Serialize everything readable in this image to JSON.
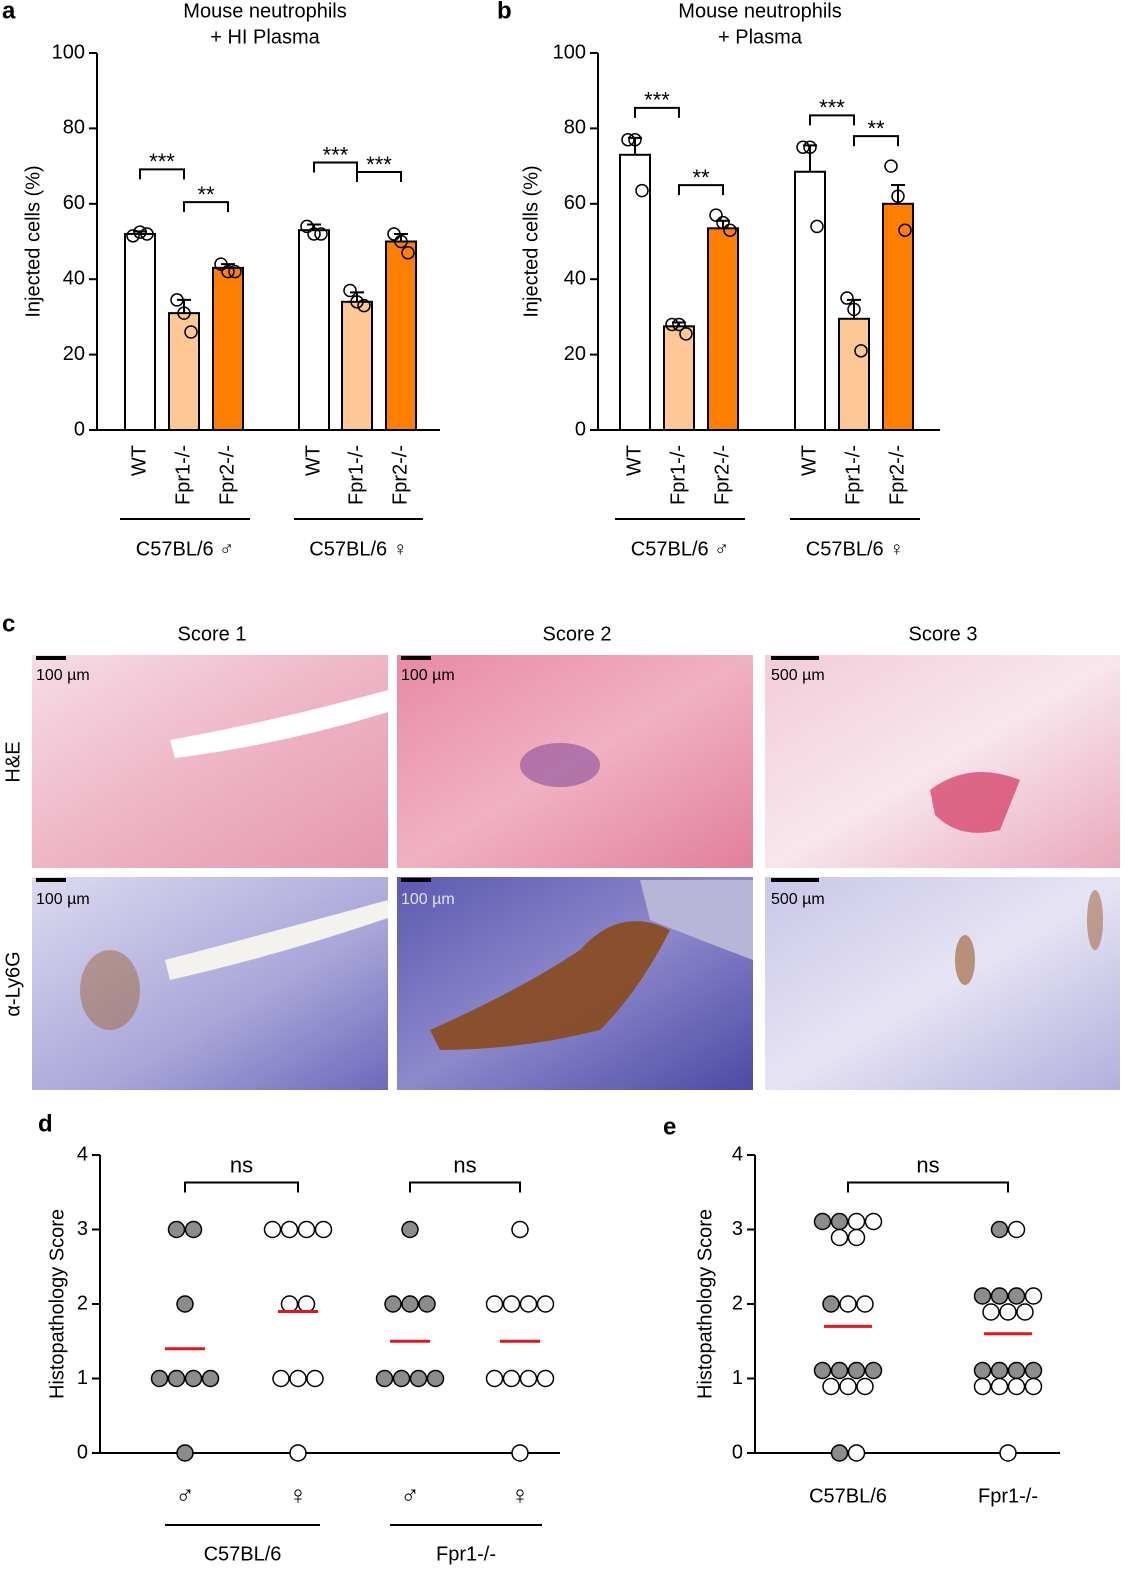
{
  "chart_data": [
    {
      "panel": "a",
      "type": "bar",
      "title": [
        "Mouse neutrophils",
        "+ HI Plasma"
      ],
      "y_label": "Injected cells (%)",
      "ylim": [
        0,
        100
      ],
      "yticks": [
        0,
        20,
        40,
        60,
        80,
        100
      ],
      "categories": [
        "WT",
        "Fpr1-/-",
        "Fpr2-/-",
        "WT",
        "Fpr1-/-",
        "Fpr2-/-"
      ],
      "groups": [
        "C57BL/6 ♂",
        "C57BL/6 ♀"
      ],
      "colors": [
        "#ffffff",
        "#fdc895",
        "#ff7f00",
        "#ffffff",
        "#fdc895",
        "#ff7f00"
      ],
      "values": [
        52,
        31,
        43,
        53,
        34,
        50
      ],
      "errors": [
        0.7,
        3.5,
        1,
        1.5,
        2.5,
        2
      ],
      "points": [
        [
          51.5,
          52.5,
          52
        ],
        [
          34.5,
          31,
          26
        ],
        [
          44,
          42,
          42
        ],
        [
          54,
          52,
          52
        ],
        [
          37,
          34,
          33
        ],
        [
          52,
          50,
          47
        ]
      ],
      "comparisons": [
        {
          "between": [
            0,
            1
          ],
          "label": "***"
        },
        {
          "between": [
            1,
            2
          ],
          "label": "**"
        },
        {
          "between": [
            3,
            4
          ],
          "label": "***"
        },
        {
          "between": [
            4,
            5
          ],
          "label": "***"
        }
      ]
    },
    {
      "panel": "b",
      "type": "bar",
      "title": [
        "Mouse neutrophils",
        "+ Plasma"
      ],
      "y_label": "Injected cells (%)",
      "ylim": [
        0,
        100
      ],
      "yticks": [
        0,
        20,
        40,
        60,
        80,
        100
      ],
      "categories": [
        "WT",
        "Fpr1-/-",
        "Fpr2-/-",
        "WT",
        "Fpr1-/-",
        "Fpr2-/-"
      ],
      "groups": [
        "C57BL/6 ♂",
        "C57BL/6 ♀"
      ],
      "colors": [
        "#ffffff",
        "#fdc895",
        "#ff7f00",
        "#ffffff",
        "#fdc895",
        "#ff7f00"
      ],
      "values": [
        73,
        27.5,
        53.5,
        68.5,
        29.5,
        60
      ],
      "errors": [
        4.5,
        1,
        2,
        7,
        5,
        5
      ],
      "points": [
        [
          77,
          77,
          63.5
        ],
        [
          28,
          28,
          25.5
        ],
        [
          57,
          55,
          53
        ],
        [
          75,
          75,
          54
        ],
        [
          35,
          32,
          21
        ],
        [
          70,
          62,
          53
        ]
      ],
      "comparisons": [
        {
          "between": [
            0,
            1
          ],
          "label": "***"
        },
        {
          "between": [
            1,
            2
          ],
          "label": "**"
        },
        {
          "between": [
            3,
            4
          ],
          "label": "***"
        },
        {
          "between": [
            4,
            5
          ],
          "label": "**"
        }
      ]
    },
    {
      "panel": "d",
      "type": "dot",
      "y_label": "Histopathology Score",
      "ylim": [
        0,
        4
      ],
      "yticks": [
        0,
        1,
        2,
        3,
        4
      ],
      "categories": [
        "♂",
        "♀",
        "♂",
        "♀"
      ],
      "groups": [
        "C57BL/6",
        "Fpr1-/-"
      ],
      "filled_color": "#8c8c8c",
      "mean_color": "#e8141c",
      "points_filled": [
        [
          3,
          3,
          2,
          1,
          1,
          1,
          1,
          0
        ],
        [],
        [
          3,
          2,
          2,
          2,
          1,
          1,
          1,
          1
        ],
        []
      ],
      "points_open": [
        [],
        [
          3,
          3,
          3,
          3,
          2,
          2,
          1,
          1,
          1,
          0
        ],
        [],
        [
          3,
          2,
          2,
          2,
          2,
          1,
          1,
          1,
          1,
          0
        ]
      ],
      "means": [
        1.4,
        1.9,
        1.5,
        1.5
      ],
      "comparisons": [
        {
          "between": [
            0,
            1
          ],
          "label": "ns"
        },
        {
          "between": [
            2,
            3
          ],
          "label": "ns"
        }
      ]
    },
    {
      "panel": "e",
      "type": "dot",
      "y_label": "Histopathology Score",
      "ylim": [
        0,
        4
      ],
      "yticks": [
        0,
        1,
        2,
        3,
        4
      ],
      "categories": [
        "C57BL/6",
        "Fpr1-/-"
      ],
      "filled_color": "#8c8c8c",
      "mean_color": "#e8141c",
      "points_filled": [
        [
          3,
          3,
          2,
          1,
          1,
          1,
          1,
          0
        ],
        [
          3,
          2,
          2,
          2,
          1,
          1,
          1,
          1
        ]
      ],
      "points_open": [
        [
          3,
          3,
          3,
          3,
          2,
          2,
          1,
          1,
          1,
          0
        ],
        [
          3,
          2,
          2,
          2,
          2,
          1,
          1,
          1,
          1,
          0
        ]
      ],
      "means": [
        1.7,
        1.6
      ],
      "comparisons": [
        {
          "between": [
            0,
            1
          ],
          "label": "ns"
        }
      ]
    }
  ],
  "panel_c": {
    "panel": "c",
    "columns": [
      "Score 1",
      "Score 2",
      "Score 3"
    ],
    "rows": [
      "H&E",
      "α-Ly6G"
    ],
    "scale_bars": [
      [
        "100 µm",
        "100 µm",
        "500 µm"
      ],
      [
        "100 µm",
        "100 µm",
        "500 µm"
      ]
    ]
  }
}
